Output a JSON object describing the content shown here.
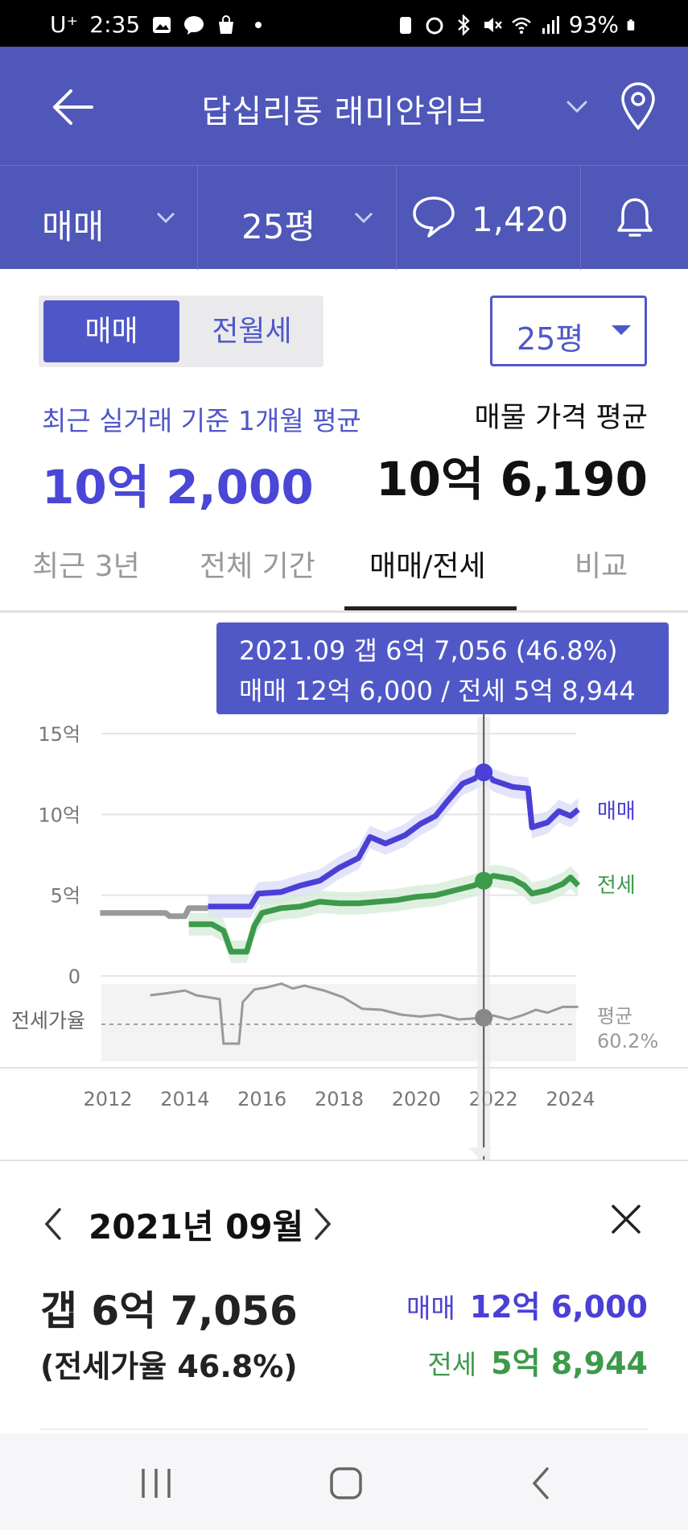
{
  "status_bar": {
    "carrier": "U⁺",
    "time": "2:35",
    "battery": "93%"
  },
  "header": {
    "title": "답십리동 래미안위브"
  },
  "subbar": {
    "trade_type": "매매",
    "area": "25평",
    "comment_count": "1,420"
  },
  "segment": {
    "active": "매매",
    "inactive": "전월세"
  },
  "area_select": {
    "value": "25평"
  },
  "summary": {
    "left_label": "최근 실거래 기준 1개월 평균",
    "left_value": "10억 2,000",
    "right_label": "매물 가격 평균",
    "right_value": "10억 6,190"
  },
  "tabs": [
    {
      "label": "최근 3년"
    },
    {
      "label": "전체 기간"
    },
    {
      "label": "매매/전세"
    },
    {
      "label": "비교"
    }
  ],
  "tooltip": {
    "line1": "2021.09  갭 6억 7,056 (46.8%)",
    "line2": "매매 12억 6,000 / 전세 5억 8,944"
  },
  "chart_data": {
    "type": "line",
    "y_ticks": [
      "15억",
      "10억",
      "5억",
      "0"
    ],
    "ylim": [
      0,
      15
    ],
    "x_ticks": [
      "2012",
      "2014",
      "2016",
      "2018",
      "2020",
      "2022",
      "2024"
    ],
    "ratio_label": "전세가율",
    "avg_label": "평균",
    "avg_value": "60.2%",
    "series": [
      {
        "name": "매매",
        "color": "#4a3fd6",
        "points": [
          [
            2014.6,
            4.3
          ],
          [
            2015.7,
            4.3
          ],
          [
            2015.9,
            5.1
          ],
          [
            2016.5,
            5.2
          ],
          [
            2017.0,
            5.6
          ],
          [
            2017.5,
            5.9
          ],
          [
            2018.0,
            6.7
          ],
          [
            2018.5,
            7.3
          ],
          [
            2018.8,
            8.6
          ],
          [
            2019.2,
            8.2
          ],
          [
            2019.7,
            8.7
          ],
          [
            2020.1,
            9.4
          ],
          [
            2020.5,
            9.9
          ],
          [
            2020.8,
            10.8
          ],
          [
            2021.2,
            11.9
          ],
          [
            2021.5,
            12.2
          ],
          [
            2021.75,
            12.6
          ],
          [
            2022.0,
            12.1
          ],
          [
            2022.5,
            11.7
          ],
          [
            2022.9,
            11.6
          ],
          [
            2023.0,
            9.2
          ],
          [
            2023.4,
            9.5
          ],
          [
            2023.7,
            10.2
          ],
          [
            2024.0,
            9.9
          ],
          [
            2024.2,
            10.3
          ]
        ]
      },
      {
        "name": "전세",
        "color": "#3c9a4a",
        "points": [
          [
            2014.1,
            3.2
          ],
          [
            2014.7,
            3.2
          ],
          [
            2015.0,
            2.8
          ],
          [
            2015.2,
            1.5
          ],
          [
            2015.6,
            1.5
          ],
          [
            2015.8,
            3.1
          ],
          [
            2016.0,
            3.9
          ],
          [
            2016.5,
            4.2
          ],
          [
            2017.0,
            4.3
          ],
          [
            2017.5,
            4.6
          ],
          [
            2018.0,
            4.5
          ],
          [
            2018.5,
            4.5
          ],
          [
            2019.0,
            4.6
          ],
          [
            2019.5,
            4.7
          ],
          [
            2020.0,
            4.9
          ],
          [
            2020.5,
            5.0
          ],
          [
            2021.0,
            5.3
          ],
          [
            2021.5,
            5.6
          ],
          [
            2021.75,
            5.9
          ],
          [
            2022.0,
            6.2
          ],
          [
            2022.5,
            6.0
          ],
          [
            2022.8,
            5.6
          ],
          [
            2023.0,
            5.1
          ],
          [
            2023.4,
            5.3
          ],
          [
            2023.8,
            5.7
          ],
          [
            2024.0,
            6.1
          ],
          [
            2024.2,
            5.6
          ]
        ]
      },
      {
        "name": "",
        "color": "#999999",
        "points": [
          [
            2011.8,
            3.9
          ],
          [
            2013.5,
            3.9
          ],
          [
            2013.6,
            3.7
          ],
          [
            2014.0,
            3.7
          ],
          [
            2014.1,
            4.2
          ],
          [
            2014.6,
            4.2
          ]
        ]
      }
    ],
    "highlight": {
      "x": 2021.75,
      "date": "2021.09",
      "sale": 12.6,
      "jeonse": 5.8944,
      "ratio_pct": 46.8
    }
  },
  "detail": {
    "date": "2021년 09월",
    "gap": "갭 6억 7,056",
    "ratio": "(전세가율 46.8%)",
    "sale_label": "매매",
    "sale_value": "12억 6,000",
    "jeonse_label": "전세",
    "jeonse_value": "5억 8,944"
  }
}
